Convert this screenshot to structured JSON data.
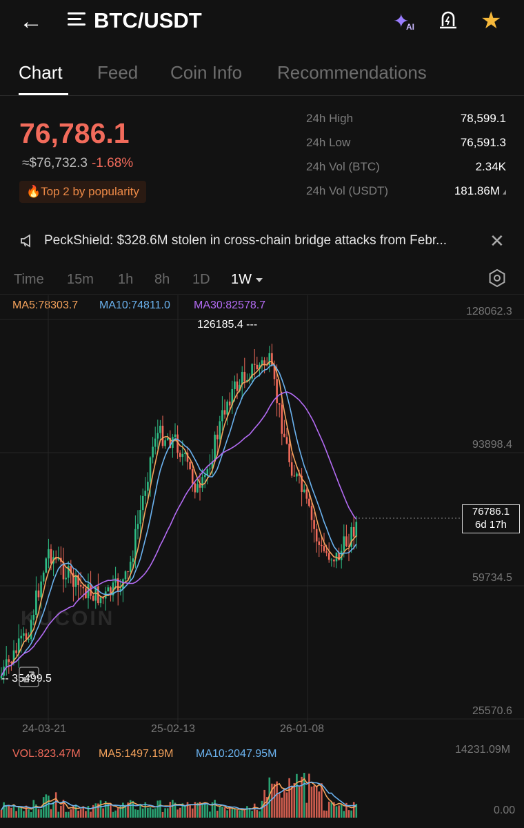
{
  "header": {
    "pair": "BTC/USDT",
    "ai_badge": "AI"
  },
  "tabs": [
    "Chart",
    "Feed",
    "Coin Info",
    "Recommendations"
  ],
  "ticker": {
    "last_price": "76,786.1",
    "fiat_price": "≈$76,732.3",
    "change": "-1.68%",
    "popularity": "Top 2 by popularity",
    "stats": [
      {
        "label": "24h High",
        "value": "78,599.1"
      },
      {
        "label": "24h Low",
        "value": "76,591.3"
      },
      {
        "label": "24h Vol (BTC)",
        "value": "2.34K"
      },
      {
        "label": "24h Vol (USDT)",
        "value": "181.86M"
      }
    ]
  },
  "news": {
    "text": "PeckShield: $328.6M stolen in cross-chain bridge attacks from Febr..."
  },
  "intervals": [
    "Time",
    "15m",
    "1h",
    "8h",
    "1D",
    "1W"
  ],
  "selected_interval": "1W",
  "indicators": {
    "ma5": "MA5:78303.7",
    "ma10": "MA10:74811.0",
    "ma30": "MA30:82578.7"
  },
  "chart": {
    "y_ticks": [
      "128062.3",
      "93898.4",
      "59734.5",
      "25570.6"
    ],
    "x_ticks": [
      "24-03-21",
      "25-02-13",
      "26-01-08"
    ],
    "high_marker": "126185.4",
    "low_marker": "35499.5",
    "last_price_tag": "76786.1",
    "countdown": "6d 17h",
    "watermark": "KUCOIN"
  },
  "volume": {
    "vol": "VOL:823.47M",
    "ma5": "MA5:1497.19M",
    "ma10": "MA10:2047.95M",
    "max": "14231.09M",
    "min": "0.00"
  },
  "colors": {
    "up": "#2ebd85",
    "down": "#f26b5b",
    "ma5": "#f5a35c",
    "ma10": "#6bb3f0",
    "ma30": "#b46cf5"
  }
}
